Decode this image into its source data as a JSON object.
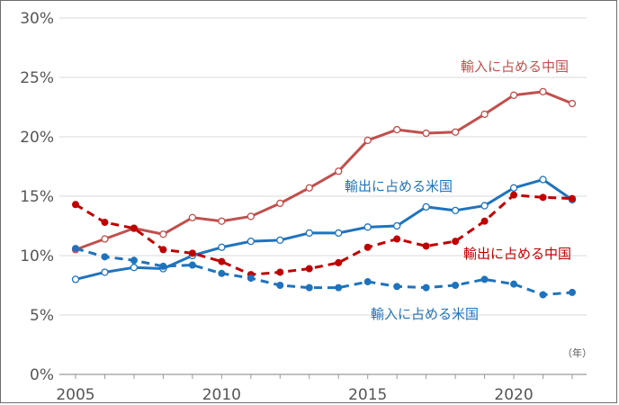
{
  "chart_data": {
    "type": "line",
    "unit_note": "（年）",
    "x": [
      2005,
      2006,
      2007,
      2008,
      2009,
      2010,
      2011,
      2012,
      2013,
      2014,
      2015,
      2016,
      2017,
      2018,
      2019,
      2020,
      2021,
      2022
    ],
    "x_ticks": [
      "2005",
      "2010",
      "2015",
      "2020"
    ],
    "y_ticks": [
      "0%",
      "5%",
      "10%",
      "15%",
      "20%",
      "25%",
      "30%"
    ],
    "ylim": [
      0,
      30
    ],
    "xlim": [
      2004.2,
      2022.5
    ],
    "grid": true,
    "series": [
      {
        "name": "輸入に占める中国",
        "color": "#c0504d",
        "style": "solid",
        "marker": "hollow",
        "values": [
          10.5,
          11.4,
          12.3,
          11.8,
          13.2,
          12.9,
          13.3,
          14.4,
          15.7,
          17.1,
          19.7,
          20.6,
          20.3,
          20.4,
          21.9,
          23.5,
          23.8,
          22.8
        ]
      },
      {
        "name": "輸出に占める米国",
        "color": "#1f73bd",
        "style": "solid",
        "marker": "hollow",
        "values": [
          8.0,
          8.6,
          9.0,
          8.9,
          10.0,
          10.7,
          11.2,
          11.3,
          11.9,
          11.9,
          12.4,
          12.5,
          14.1,
          13.8,
          14.2,
          15.7,
          16.4,
          14.7
        ]
      },
      {
        "name": "輸出に占める中国",
        "color": "#c00000",
        "style": "dashed",
        "marker": "filled",
        "values": [
          14.3,
          12.8,
          12.3,
          10.5,
          10.2,
          9.5,
          8.4,
          8.6,
          8.9,
          9.4,
          10.7,
          11.4,
          10.8,
          11.2,
          12.9,
          15.1,
          14.9,
          14.8
        ]
      },
      {
        "name": "輸入に占める米国",
        "color": "#1f73bd",
        "style": "dashed",
        "marker": "filled",
        "values": [
          10.6,
          9.9,
          9.6,
          9.1,
          9.2,
          8.5,
          8.1,
          7.5,
          7.3,
          7.3,
          7.8,
          7.4,
          7.3,
          7.5,
          8.0,
          7.6,
          6.7,
          6.9
        ]
      }
    ]
  }
}
